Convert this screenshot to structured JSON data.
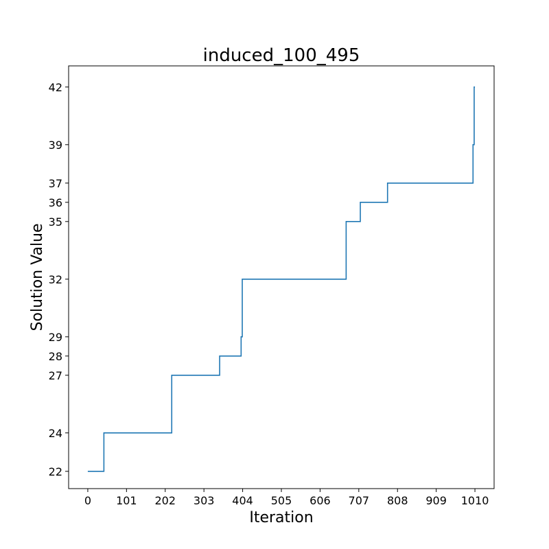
{
  "chart_data": {
    "type": "line",
    "title": "induced_100_495",
    "xlabel": "Iteration",
    "ylabel": "Solution Value",
    "xlim": [
      -50,
      1060
    ],
    "ylim": [
      21.1,
      43.1
    ],
    "xticks": [
      0,
      101,
      202,
      303,
      404,
      505,
      606,
      707,
      808,
      909,
      1010
    ],
    "yticks": [
      22,
      24,
      27,
      28,
      29,
      32,
      35,
      36,
      37,
      39,
      42
    ],
    "grid": false,
    "legend": "none",
    "series": [
      {
        "color": "#1f77b4",
        "step": "post",
        "x": [
          0,
          42,
          219,
          344,
          400,
          403,
          674,
          711,
          782,
          1005,
          1008,
          1010
        ],
        "y": [
          22,
          24,
          27,
          28,
          29,
          32,
          35,
          36,
          37,
          39,
          42,
          42
        ]
      }
    ]
  }
}
